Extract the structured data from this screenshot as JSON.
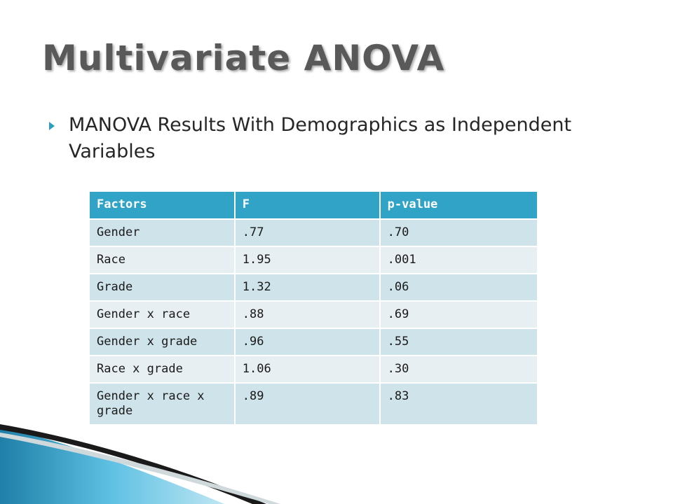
{
  "slide": {
    "title": "Multivariate ANOVA",
    "bullet": "MANOVA Results With Demographics as Independent Variables"
  },
  "table": {
    "headers": [
      "Factors",
      "F",
      "p-value"
    ],
    "rows": [
      [
        "Gender",
        ".77",
        ".70"
      ],
      [
        "Race",
        "1.95",
        ".001"
      ],
      [
        "Grade",
        "1.32",
        ".06"
      ],
      [
        "Gender x race",
        ".88",
        ".69"
      ],
      [
        "Gender x grade",
        ".96",
        ".55"
      ],
      [
        "Race x grade",
        "1.06",
        ".30"
      ],
      [
        "Gender x race x grade",
        ".89",
        ".83"
      ]
    ]
  },
  "colors": {
    "header_bg": "#31a3c6",
    "row_odd_bg": "#cfe3ea",
    "row_even_bg": "#e8eff2",
    "accent": "#2e9fbf",
    "title": "#595959"
  }
}
